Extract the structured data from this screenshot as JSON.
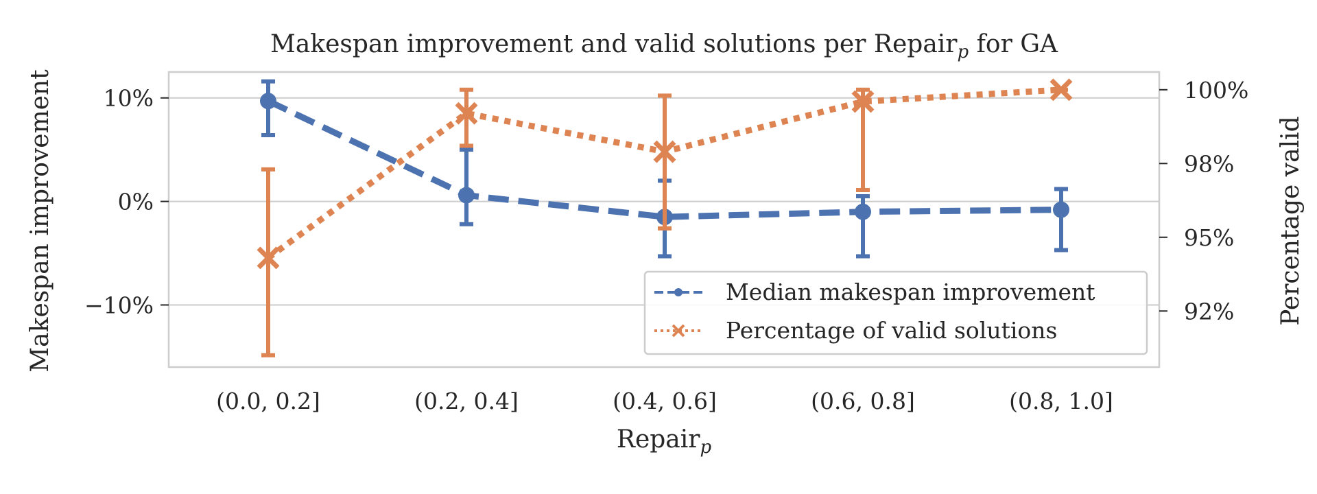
{
  "chart_data": {
    "type": "line",
    "title": "Makespan improvement and valid solutions per Repair",
    "title_sub": "p",
    "title_suffix": " for GA",
    "xlabel": "Repair",
    "xlabel_sub": "p",
    "ylabel_left": "Makespan improvement",
    "ylabel_right": "Percentage valid",
    "categories": [
      "(0.0, 0.2]",
      "(0.2, 0.4]",
      "(0.4, 0.6]",
      "(0.6, 0.8]",
      "(0.8, 1.0]"
    ],
    "ylim_left": [
      -16,
      12.5
    ],
    "ylim_right": [
      90.6,
      100.6
    ],
    "yticks_left": [
      {
        "value": 10,
        "label": "10%"
      },
      {
        "value": 0,
        "label": "0%"
      },
      {
        "value": -10,
        "label": "−10%"
      }
    ],
    "yticks_right": [
      {
        "value": 100,
        "label": "100%"
      },
      {
        "value": 97.5,
        "label": "98%"
      },
      {
        "value": 95,
        "label": "95%"
      },
      {
        "value": 92.5,
        "label": "92%"
      }
    ],
    "grid": true,
    "legend_position": "lower-right",
    "series": [
      {
        "name": "Median makespan improvement",
        "axis": "left",
        "color": "#4c72b0",
        "linestyle": "dashed",
        "marker": "circle",
        "values": [
          9.7,
          0.6,
          -1.5,
          -1.0,
          -0.8
        ],
        "err_low": [
          6.4,
          -2.2,
          -5.3,
          -5.3,
          -4.7
        ],
        "err_high": [
          11.6,
          5.0,
          2.0,
          0.5,
          1.2
        ]
      },
      {
        "name": "Percentage of valid solutions",
        "axis": "right",
        "color": "#dd8452",
        "linestyle": "dotted",
        "marker": "x",
        "values": [
          94.3,
          99.2,
          97.9,
          99.6,
          100.0
        ],
        "err_low": [
          91.0,
          98.1,
          95.3,
          96.6,
          100.0
        ],
        "err_high": [
          97.3,
          100.0,
          99.8,
          100.0,
          100.0
        ]
      }
    ]
  }
}
